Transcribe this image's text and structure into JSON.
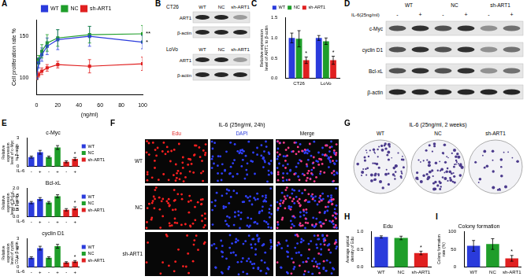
{
  "chart_data": [
    {
      "panel": "A",
      "type": "line",
      "x": [
        0,
        2,
        5,
        10,
        20,
        50,
        100
      ],
      "xlim": [
        0,
        100
      ],
      "xticks": [
        0,
        20,
        40,
        60,
        80,
        100
      ],
      "ylim": [
        80,
        170
      ],
      "yticks": [
        100,
        150
      ],
      "x_label": "(ng/ml)",
      "y_label": "Cell proliferation rate %",
      "grid": false,
      "legend": "top",
      "marker": "square",
      "series": [
        {
          "name": "WT",
          "color": "#2a3bdc",
          "values": [
            100,
            118,
            128,
            138,
            146,
            150,
            143
          ],
          "errors": [
            2,
            6,
            8,
            10,
            12,
            12,
            8
          ]
        },
        {
          "name": "NC",
          "color": "#1f9e2a",
          "values": [
            100,
            122,
            132,
            142,
            148,
            152,
            153
          ],
          "errors": [
            2,
            5,
            8,
            10,
            10,
            10,
            10
          ]
        },
        {
          "name": "sh-ART1",
          "color": "#e02020",
          "values": [
            100,
            104,
            108,
            112,
            116,
            114,
            117
          ],
          "errors": [
            2,
            3,
            4,
            4,
            4,
            8,
            8
          ]
        }
      ],
      "annotations": [
        {
          "text": "*",
          "series": "WT",
          "index": 6
        },
        {
          "text": "**",
          "series": "NC",
          "index": 6
        }
      ]
    },
    {
      "panel": "C",
      "type": "bar",
      "categories": [
        "CT26",
        "LoVo"
      ],
      "ylim": [
        0,
        1.5
      ],
      "yticks": [
        {
          "value": 0,
          "label": "0.0"
        },
        {
          "value": 0.5,
          "label": "0.5"
        },
        {
          "value": 1,
          "label": "1.0"
        },
        {
          "value": 1.5,
          "label": "1.5"
        }
      ],
      "y_label": "Relative expression level of ART1 to β-actin",
      "grid": false,
      "legend": "top",
      "series": [
        {
          "name": "WT",
          "color": "#2a3bdc",
          "values": [
            1.0,
            1.0
          ],
          "errors": [
            0.12,
            0.06
          ]
        },
        {
          "name": "NC",
          "color": "#1f9e2a",
          "values": [
            0.98,
            0.92
          ],
          "errors": [
            0.2,
            0.08
          ]
        },
        {
          "name": "sh-ART1",
          "color": "#e02020",
          "values": [
            0.45,
            0.45
          ],
          "errors": [
            0.08,
            0.1
          ]
        }
      ],
      "annotations": [
        {
          "text": "*",
          "series": "sh-ART1",
          "index": 0
        },
        {
          "text": "*",
          "series": "sh-ART1",
          "index": 1
        }
      ]
    },
    {
      "panel": "E",
      "type": "bar",
      "title": "c-Myc",
      "categories": [
        "-",
        "+",
        "-",
        "+",
        "-",
        "+"
      ],
      "x_label": "IL-6",
      "ylim": [
        0,
        3
      ],
      "yticks": [
        0,
        1,
        2,
        3
      ],
      "y_label": "Relative expression level of c-Myc to β-actin",
      "grid": false,
      "legend": "right",
      "series": [
        {
          "name": "WT",
          "color": "#2a3bdc",
          "values": [
            1.0,
            1.5,
            null,
            null,
            null,
            null
          ],
          "errors": [
            0.1,
            0.2,
            null,
            null,
            null,
            null
          ]
        },
        {
          "name": "NC",
          "color": "#1f9e2a",
          "values": [
            null,
            null,
            1.0,
            2.0,
            null,
            null
          ],
          "errors": [
            null,
            null,
            0.1,
            0.2,
            null,
            null
          ]
        },
        {
          "name": "sh-ART1",
          "color": "#e02020",
          "values": [
            null,
            null,
            null,
            null,
            0.5,
            0.8
          ],
          "errors": [
            null,
            null,
            null,
            null,
            0.1,
            0.15
          ]
        }
      ],
      "annotations": [
        {
          "text": "*",
          "series": "sh-ART1",
          "index": 5
        }
      ]
    },
    {
      "type": "bar",
      "title": "Bcl-xL",
      "categories": [
        "-",
        "+",
        "-",
        "+",
        "-",
        "+"
      ],
      "x_label": "IL-6",
      "ylim": [
        0,
        2
      ],
      "yticks": [
        {
          "value": 0,
          "label": "0.0"
        },
        {
          "value": 0.5,
          "label": "0.5"
        },
        {
          "value": 1,
          "label": "1.0"
        },
        {
          "value": 1.5,
          "label": "1.5"
        },
        {
          "value": 2,
          "label": "2.0"
        }
      ],
      "y_label": "Relative expression level of Bcl-xL to β-actin",
      "grid": false,
      "legend": "right",
      "series": [
        {
          "name": "WT",
          "color": "#2a3bdc",
          "values": [
            1.0,
            1.25,
            null,
            null,
            null,
            null
          ],
          "errors": [
            0.08,
            0.1,
            null,
            null,
            null,
            null
          ]
        },
        {
          "name": "NC",
          "color": "#1f9e2a",
          "values": [
            null,
            null,
            1.0,
            1.45,
            null,
            null
          ],
          "errors": [
            null,
            null,
            0.08,
            0.1,
            null,
            null
          ]
        },
        {
          "name": "sh-ART1",
          "color": "#e02020",
          "values": [
            null,
            null,
            null,
            null,
            0.5,
            0.6
          ],
          "errors": [
            null,
            null,
            null,
            null,
            0.08,
            0.1
          ]
        }
      ],
      "annotations": [
        {
          "text": "*",
          "series": "sh-ART1",
          "index": 5
        }
      ]
    },
    {
      "type": "bar",
      "title": "cyclin D1",
      "categories": [
        "-",
        "+",
        "-",
        "+",
        "-",
        "+"
      ],
      "x_label": "IL-6",
      "ylim": [
        0,
        3
      ],
      "yticks": [
        0,
        1,
        2,
        3
      ],
      "y_label": "Relative expression level of cyclin D1 to β-actin",
      "grid": false,
      "legend": "right",
      "series": [
        {
          "name": "WT",
          "color": "#2a3bdc",
          "values": [
            1.0,
            2.0,
            null,
            null,
            null,
            null
          ],
          "errors": [
            0.1,
            0.2,
            null,
            null,
            null,
            null
          ]
        },
        {
          "name": "NC",
          "color": "#1f9e2a",
          "values": [
            null,
            null,
            1.0,
            2.2,
            null,
            null
          ],
          "errors": [
            null,
            null,
            0.1,
            0.2,
            null,
            null
          ]
        },
        {
          "name": "sh-ART1",
          "color": "#e02020",
          "values": [
            null,
            null,
            null,
            null,
            0.5,
            0.6
          ],
          "errors": [
            null,
            null,
            null,
            null,
            0.08,
            0.1
          ]
        }
      ],
      "annotations": [
        {
          "text": "*",
          "series": "sh-ART1",
          "index": 5
        }
      ]
    },
    {
      "panel": "H",
      "type": "bar",
      "title": "Edu",
      "categories": [
        "WT",
        "NC",
        "sh-ART1"
      ],
      "values": [
        0.85,
        0.82,
        0.4
      ],
      "errors": [
        0.03,
        0.05,
        0.05
      ],
      "colors": [
        "#2a3bdc",
        "#1f9e2a",
        "#e02020"
      ],
      "ylim": [
        0,
        1
      ],
      "yticks": [
        {
          "value": 0,
          "label": "0.0"
        },
        {
          "value": 0.5,
          "label": "0.5"
        },
        {
          "value": 1,
          "label": "1.0"
        }
      ],
      "y_label": "Average optical density of Edu",
      "grid": false,
      "annotations": [
        {
          "text": "*",
          "index": 2
        }
      ]
    },
    {
      "panel": "I",
      "type": "bar",
      "title": "Colony formation",
      "categories": [
        "WT",
        "NC",
        "sh-ART1"
      ],
      "values": [
        60,
        65,
        25
      ],
      "errors": [
        15,
        15,
        8
      ],
      "colors": [
        "#2a3bdc",
        "#1f9e2a",
        "#e02020"
      ],
      "ylim": [
        0,
        100
      ],
      "yticks": [
        0,
        50,
        100
      ],
      "y_label": "Colony formation rate (%)",
      "grid": false,
      "annotations": [
        {
          "text": "*",
          "index": 2
        }
      ]
    }
  ],
  "blots": [
    {
      "panel": "B",
      "groups": [
        {
          "name": "CT26",
          "lanes": [
            "WT",
            "NC",
            "sh-ART1"
          ],
          "rows": [
            "ART1",
            "β-actin"
          ]
        },
        {
          "name": "LoVo",
          "lanes": [
            "WT",
            "NC",
            "sh-ART1"
          ],
          "rows": [
            "ART1",
            "β-actin"
          ]
        }
      ]
    },
    {
      "panel": "D",
      "header": "IL-6(25ng/ml)",
      "groups": [
        "WT",
        "NC",
        "sh-ART1"
      ],
      "treatment": [
        "-",
        "+",
        "-",
        "+",
        "-",
        "+"
      ],
      "rows": [
        "c-Myc",
        "cyclin D1",
        "Bcl-xL",
        "β-actin"
      ]
    }
  ],
  "images": [
    {
      "panel": "F",
      "title": "IL-6 (25ng/ml, 24h)",
      "columns": [
        "Edu",
        "DAPI",
        "Merge"
      ],
      "rows": [
        "WT",
        "NC",
        "sh-ART1"
      ]
    },
    {
      "panel": "G",
      "title": "IL-6 (25ng/ml, 2 weeks)",
      "labels": [
        "WT",
        "NC",
        "sh-ART1"
      ]
    }
  ]
}
